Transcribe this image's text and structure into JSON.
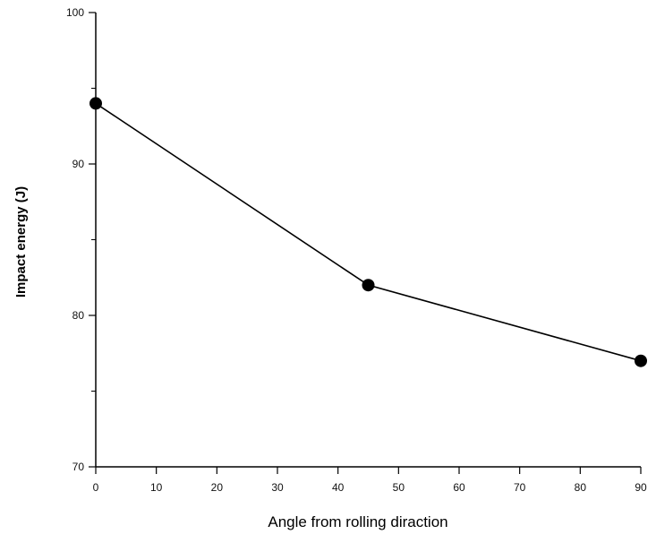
{
  "chart_data": {
    "type": "line",
    "title": "",
    "xlabel": "Angle from rolling diraction",
    "ylabel": "Impact energy (J)",
    "xlim": [
      0,
      90
    ],
    "ylim": [
      70,
      100
    ],
    "x_ticks": [
      "0",
      "10",
      "20",
      "30",
      "40",
      "50",
      "60",
      "70",
      "80",
      "90"
    ],
    "y_ticks": [
      "70",
      "80",
      "90",
      "100"
    ],
    "series": [
      {
        "x": [
          0,
          45,
          90
        ],
        "y": [
          94,
          82,
          77
        ]
      }
    ],
    "grid": false,
    "legend": false,
    "marker": "circle",
    "color": "#000000"
  }
}
